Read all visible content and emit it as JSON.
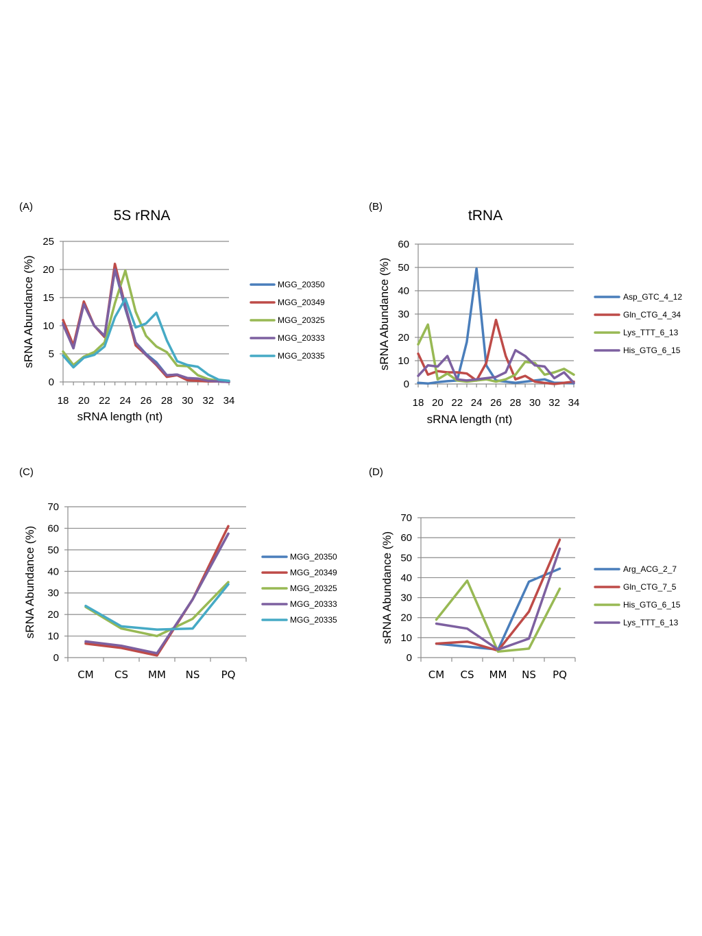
{
  "chart_data": [
    {
      "panel": "(A)",
      "type": "line",
      "title": "5S rRNA",
      "xlabel": "sRNA length (nt)",
      "ylabel": "sRNA Abundance (%)",
      "x": [
        18,
        19,
        20,
        21,
        22,
        23,
        24,
        25,
        26,
        27,
        28,
        29,
        30,
        31,
        32,
        33,
        34
      ],
      "xticks": [
        18,
        20,
        22,
        24,
        26,
        28,
        30,
        32,
        34
      ],
      "yticks": [
        0,
        5,
        10,
        15,
        20,
        25
      ],
      "ylim": [
        0,
        25
      ],
      "grid": true,
      "legend_position": "right",
      "series": [
        {
          "name": "MGG_20350",
          "color": "#4a7ebb",
          "values": [
            10.5,
            6,
            14,
            10,
            8,
            20,
            13,
            7,
            5,
            3.5,
            1.2,
            1.3,
            0.6,
            0.4,
            0.2,
            0.1,
            0
          ]
        },
        {
          "name": "MGG_20349",
          "color": "#be4b48",
          "values": [
            11,
            6.5,
            14.3,
            10,
            8,
            21,
            13.5,
            6.5,
            4.8,
            3,
            0.9,
            1.2,
            0.3,
            0.2,
            0.1,
            0.1,
            0
          ]
        },
        {
          "name": "MGG_20325",
          "color": "#98b954",
          "values": [
            5.4,
            3,
            4.5,
            5.3,
            7,
            14,
            19.8,
            12.5,
            8.2,
            6.3,
            5.3,
            2.9,
            2.8,
            1.2,
            0.5,
            0.2,
            0.1
          ]
        },
        {
          "name": "MGG_20333",
          "color": "#7d60a0",
          "values": [
            10.2,
            6,
            13.8,
            10,
            8.2,
            20,
            13.5,
            7,
            4.8,
            3.2,
            1.2,
            1.3,
            0.7,
            0.6,
            0.2,
            0.1,
            0
          ]
        },
        {
          "name": "MGG_20335",
          "color": "#46aac5",
          "values": [
            4.7,
            2.6,
            4.3,
            4.8,
            6.3,
            11.5,
            14.8,
            9.7,
            10.4,
            12.3,
            7.4,
            3.7,
            3,
            2.7,
            1.3,
            0.4,
            0.2
          ]
        }
      ]
    },
    {
      "panel": "(B)",
      "type": "line",
      "title": "tRNA",
      "xlabel": "sRNA length (nt)",
      "ylabel": "sRNA Abundance (%)",
      "x": [
        18,
        19,
        20,
        21,
        22,
        23,
        24,
        25,
        26,
        27,
        28,
        29,
        30,
        31,
        32,
        33,
        34
      ],
      "xticks": [
        18,
        20,
        22,
        24,
        26,
        28,
        30,
        32,
        34
      ],
      "yticks": [
        0,
        10,
        20,
        30,
        40,
        50,
        60
      ],
      "ylim": [
        0,
        60
      ],
      "grid": true,
      "legend_position": "right",
      "series": [
        {
          "name": "Asp_GTC_4_12",
          "color": "#4a7ebb",
          "values": [
            0.5,
            0.2,
            0.8,
            1.2,
            1.5,
            18,
            49.5,
            8,
            1.5,
            1,
            0.5,
            1,
            1.5,
            2,
            0.5,
            0.5,
            0.3
          ]
        },
        {
          "name": "Gln_CTG_4_34",
          "color": "#be4b48",
          "values": [
            13,
            4,
            5.5,
            5,
            5,
            4.5,
            1.5,
            9,
            27.5,
            12,
            2,
            3.5,
            1,
            0.5,
            0,
            0.5,
            1
          ]
        },
        {
          "name": "Lys_TTT_6_13",
          "color": "#98b954",
          "values": [
            17,
            25.5,
            2,
            4.5,
            1.5,
            1,
            1.5,
            2,
            1,
            2,
            4,
            9.5,
            9,
            4,
            5,
            6.5,
            4
          ]
        },
        {
          "name": "His_GTG_6_15",
          "color": "#7d60a0",
          "values": [
            3.5,
            8,
            7.5,
            12,
            2,
            1.5,
            2,
            2.5,
            3,
            5,
            14.5,
            12,
            8,
            7.5,
            2.5,
            5,
            0.5
          ]
        }
      ]
    },
    {
      "panel": "(C)",
      "type": "line",
      "title": "",
      "xlabel": "",
      "ylabel": "sRNA Abundance (%)",
      "categories": [
        "CM",
        "CS",
        "MM",
        "NS",
        "PQ"
      ],
      "yticks": [
        0,
        10,
        20,
        30,
        40,
        50,
        60,
        70
      ],
      "ylim": [
        0,
        70
      ],
      "grid": true,
      "legend_position": "right",
      "series": [
        {
          "name": "MGG_20350",
          "color": "#4a7ebb",
          "values": [
            7,
            5,
            1.5,
            27,
            57.5
          ]
        },
        {
          "name": "MGG_20349",
          "color": "#be4b48",
          "values": [
            6.5,
            4.5,
            1,
            27,
            61
          ]
        },
        {
          "name": "MGG_20325",
          "color": "#98b954",
          "values": [
            23.5,
            13.5,
            10,
            18,
            35
          ]
        },
        {
          "name": "MGG_20333",
          "color": "#7d60a0",
          "values": [
            7.5,
            5.5,
            2,
            27,
            57.5
          ]
        },
        {
          "name": "MGG_20335",
          "color": "#46aac5",
          "values": [
            24,
            14.5,
            13,
            13.5,
            34
          ]
        }
      ]
    },
    {
      "panel": "(D)",
      "type": "line",
      "title": "",
      "xlabel": "",
      "ylabel": "sRNA Abundance (%)",
      "categories": [
        "CM",
        "CS",
        "MM",
        "NS",
        "PQ"
      ],
      "yticks": [
        0,
        10,
        20,
        30,
        40,
        50,
        60,
        70
      ],
      "ylim": [
        0,
        70
      ],
      "grid": true,
      "legend_position": "right",
      "series": [
        {
          "name": "Arg_ACG_2_7",
          "color": "#4a7ebb",
          "values": [
            7,
            5.5,
            4,
            38,
            44.5
          ]
        },
        {
          "name": "Gln_CTG_7_5",
          "color": "#be4b48",
          "values": [
            7,
            8,
            3.5,
            23,
            59
          ]
        },
        {
          "name": "His_GTG_6_15",
          "color": "#98b954",
          "values": [
            19,
            38.5,
            3,
            4.5,
            34.5
          ]
        },
        {
          "name": "Lys_TTT_6_13",
          "color": "#7d60a0",
          "values": [
            17,
            14.5,
            4,
            9.5,
            54.5
          ]
        }
      ]
    }
  ]
}
